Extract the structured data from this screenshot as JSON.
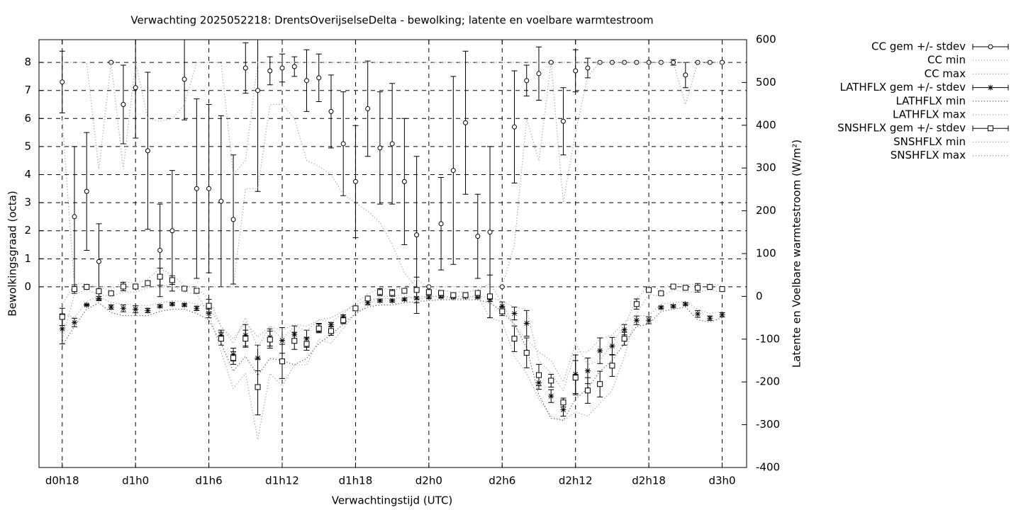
{
  "chart_data": {
    "type": "errorbar",
    "title": "Verwachting 2025052218: DrentsOverijselseDelta - bewolking; latente en voelbare warmtestroom",
    "xlabel": "Verwachtingstijd (UTC)",
    "ylabel": "Bewolkingsgraad (octa)",
    "y2label": "Latente en Voelbare warmtestroom (W/m²)",
    "x": [
      18,
      19,
      20,
      21,
      22,
      23,
      24,
      25,
      26,
      27,
      28,
      29,
      30,
      31,
      32,
      33,
      34,
      35,
      36,
      37,
      38,
      39,
      40,
      41,
      42,
      43,
      44,
      45,
      46,
      47,
      48,
      49,
      50,
      51,
      52,
      53,
      54,
      55,
      56,
      57,
      58,
      59,
      60,
      61,
      62,
      63,
      64,
      65,
      66,
      67,
      68,
      69,
      70,
      71,
      72
    ],
    "xlim": [
      16.1,
      74
    ],
    "xticks": [
      {
        "value": 18,
        "label": "d0h18"
      },
      {
        "value": 24,
        "label": "d1h0"
      },
      {
        "value": 30,
        "label": "d1h6"
      },
      {
        "value": 36,
        "label": "d1h12"
      },
      {
        "value": 42,
        "label": "d1h18"
      },
      {
        "value": 48,
        "label": "d2h0"
      },
      {
        "value": 54,
        "label": "d2h6"
      },
      {
        "value": 60,
        "label": "d2h12"
      },
      {
        "value": 66,
        "label": "d2h18"
      },
      {
        "value": 72,
        "label": "d3h0"
      }
    ],
    "ylim": [
      -6.44,
      8.81
    ],
    "yticks": [
      0,
      1,
      2,
      3,
      4,
      5,
      6,
      7,
      8
    ],
    "y2lim": [
      -400,
      600
    ],
    "y2ticks": [
      -400,
      -300,
      -200,
      -100,
      0,
      100,
      200,
      300,
      400,
      500,
      600
    ],
    "grid": true,
    "legend": "outside-right",
    "series": [
      {
        "name": "CC gem +/- stdev",
        "style": "errorbar",
        "marker": "circle",
        "color": "#000000",
        "values": [
          7.3,
          2.5,
          3.4,
          0.9,
          8,
          6.5,
          7.1,
          4.85,
          1.3,
          2.0,
          7.4,
          3.5,
          3.5,
          3.05,
          2.4,
          7.8,
          7.0,
          7.7,
          7.8,
          7.85,
          7.35,
          7.45,
          6.25,
          5.1,
          3.75,
          6.35,
          4.95,
          5.1,
          3.75,
          1.85,
          0,
          2.25,
          4.15,
          5.85,
          1.8,
          1.95,
          0,
          5.7,
          7.35,
          7.6,
          8,
          5.9,
          7.7,
          7.8,
          8,
          8,
          8,
          8,
          8,
          8,
          8,
          7.55,
          8,
          8,
          8
        ],
        "errors": [
          1.1,
          2.5,
          2.1,
          1.35,
          0,
          1.4,
          1.8,
          2.8,
          1.65,
          2.15,
          1.45,
          3.2,
          3.0,
          3.05,
          2.3,
          0.9,
          3.6,
          0.5,
          0.5,
          0.35,
          1.1,
          0.85,
          1.3,
          1.85,
          2.0,
          1.7,
          2.0,
          2.15,
          2.25,
          2.8,
          0,
          1.65,
          3.35,
          2.55,
          1.5,
          3.05,
          0,
          2.0,
          0.55,
          0.95,
          0,
          1.2,
          0.75,
          0.35,
          0,
          0,
          0,
          0,
          0,
          0,
          0.1,
          0.45,
          0,
          0,
          0
        ]
      },
      {
        "name": "CC min",
        "style": "dotted",
        "color": "#a0a0a0",
        "values": [
          6,
          0,
          0,
          0,
          0,
          0,
          0,
          0,
          0,
          0,
          0,
          0,
          0,
          0,
          0,
          3.5,
          3.5,
          6.5,
          6.5,
          6,
          4.5,
          4.3,
          4,
          3.3,
          3,
          2.7,
          2.3,
          1.5,
          0.5,
          0,
          0,
          0,
          0,
          0,
          0,
          0,
          0,
          1.5,
          6,
          4.5,
          8,
          3,
          5.5,
          7.5,
          8,
          8,
          8,
          8,
          8,
          8,
          8,
          6.5,
          8,
          8,
          8
        ]
      },
      {
        "name": "CC max",
        "style": "dotted",
        "color": "#a0a0a0",
        "values": [
          8,
          8,
          8,
          4.2,
          8,
          4.2,
          8,
          6,
          5.9,
          6,
          6.5,
          8,
          8,
          8,
          4,
          4.5,
          8,
          8,
          8,
          8,
          8,
          8,
          8,
          8,
          8,
          8,
          8,
          8,
          8,
          8,
          8,
          8,
          8,
          8,
          8,
          8,
          8,
          8,
          8,
          8,
          8,
          8,
          8,
          8,
          8,
          8,
          8,
          8,
          8,
          8,
          8,
          8,
          8,
          8,
          8
        ]
      },
      {
        "name": "LATHFLX gem +/- stdev",
        "style": "errorbar",
        "marker": "star",
        "color": "#000000",
        "axis": "y2",
        "values": [
          -76,
          -61,
          -20,
          -5,
          -25,
          -28,
          -30,
          -33,
          -23,
          -18,
          -20,
          -28,
          -40,
          -91,
          -136,
          -91,
          -144,
          -96,
          -103,
          -89,
          -99,
          -73,
          -66,
          -48,
          -28,
          -15,
          -10,
          -10,
          -7,
          -4,
          -2,
          -1,
          -2,
          -1,
          -2,
          -7,
          -23,
          -40,
          -63,
          -202,
          -233,
          -265,
          -182,
          -174,
          -127,
          -116,
          -78,
          -56,
          -56,
          -26,
          -23,
          -18,
          -41,
          -51,
          -43
        ],
        "errors": [
          35,
          10,
          2,
          5,
          5,
          8,
          8,
          5,
          3,
          3,
          3,
          5,
          10,
          12,
          15,
          25,
          30,
          20,
          30,
          20,
          20,
          10,
          5,
          5,
          5,
          5,
          3,
          3,
          3,
          3,
          3,
          2,
          2,
          2,
          2,
          5,
          10,
          15,
          30,
          15,
          15,
          15,
          45,
          30,
          30,
          20,
          12,
          10,
          8,
          3,
          3,
          3,
          8,
          5,
          5
        ]
      },
      {
        "name": "LATHFLX min",
        "style": "dotted",
        "color": "#505050",
        "axis": "y2",
        "values": [
          -115,
          -70,
          -30,
          -15,
          -38,
          -45,
          -45,
          -45,
          -35,
          -30,
          -30,
          -40,
          -55,
          -110,
          -175,
          -140,
          -185,
          -145,
          -150,
          -160,
          -145,
          -110,
          -90,
          -65,
          -40,
          -25,
          -20,
          -20,
          -15,
          -12,
          -10,
          -8,
          -8,
          -8,
          -8,
          -15,
          -35,
          -65,
          -120,
          -230,
          -285,
          -290,
          -240,
          -215,
          -175,
          -150,
          -110,
          -70,
          -65,
          -35,
          -30,
          -25,
          -55,
          -60,
          -50
        ]
      },
      {
        "name": "LATHFLX max",
        "style": "dotted",
        "color": "#a0a0a0",
        "axis": "y2",
        "values": [
          -40,
          -50,
          -12,
          0,
          -15,
          -18,
          -20,
          -22,
          -15,
          -10,
          -12,
          -18,
          -25,
          -70,
          -100,
          -60,
          -95,
          -70,
          -80,
          -65,
          -70,
          -55,
          -50,
          -35,
          -20,
          -8,
          -5,
          -5,
          -3,
          -1,
          0,
          0,
          0,
          0,
          0,
          -2,
          -12,
          -25,
          -30,
          -150,
          -180,
          -220,
          -130,
          -130,
          -100,
          -90,
          -60,
          -45,
          -45,
          -18,
          -15,
          -12,
          -30,
          -40,
          -35
        ]
      },
      {
        "name": "SNSHFLX gem +/- stdev",
        "style": "errorbar",
        "marker": "square",
        "color": "#000000",
        "axis": "y2",
        "values": [
          -48,
          17,
          22,
          12,
          7,
          23,
          23,
          31,
          46,
          38,
          18,
          13,
          -22,
          -99,
          -144,
          -99,
          -212,
          -101,
          -152,
          -104,
          -111,
          -75,
          -81,
          -56,
          -28,
          -5,
          10,
          8,
          13,
          15,
          10,
          8,
          3,
          3,
          8,
          0,
          -35,
          -99,
          -132,
          -184,
          -197,
          -248,
          -190,
          -220,
          -205,
          -162,
          -99,
          -18,
          15,
          7,
          23,
          20,
          20,
          22,
          17
        ],
        "errors": [
          20,
          10,
          3,
          5,
          3,
          10,
          5,
          5,
          20,
          10,
          5,
          5,
          15,
          15,
          15,
          20,
          65,
          20,
          40,
          20,
          15,
          10,
          10,
          8,
          5,
          5,
          8,
          8,
          5,
          30,
          5,
          3,
          3,
          3,
          5,
          50,
          10,
          30,
          35,
          25,
          15,
          10,
          40,
          30,
          30,
          25,
          15,
          12,
          3,
          3,
          3,
          3,
          10,
          3,
          3
        ]
      },
      {
        "name": "SNSHFLX min",
        "style": "dotted",
        "color": "#a0a0a0",
        "axis": "y2",
        "values": [
          -100,
          5,
          15,
          5,
          0,
          10,
          10,
          20,
          25,
          25,
          10,
          5,
          -40,
          -130,
          -215,
          -180,
          -335,
          -180,
          -210,
          -160,
          -160,
          -100,
          -110,
          -75,
          -40,
          -20,
          0,
          0,
          5,
          -10,
          0,
          0,
          -5,
          -5,
          0,
          -50,
          -60,
          -140,
          -180,
          -240,
          -280,
          -290,
          -270,
          -280,
          -250,
          -220,
          -140,
          -40,
          5,
          0,
          15,
          10,
          10,
          15,
          10
        ]
      },
      {
        "name": "SNSHFLX max",
        "style": "dotted",
        "color": "#a0a0a0",
        "axis": "y2",
        "values": [
          -20,
          30,
          30,
          20,
          15,
          35,
          30,
          40,
          65,
          50,
          25,
          20,
          -5,
          -70,
          -110,
          -50,
          -120,
          -70,
          -100,
          -70,
          -80,
          -55,
          -60,
          -40,
          -15,
          5,
          20,
          15,
          20,
          40,
          20,
          15,
          10,
          10,
          15,
          30,
          -15,
          -70,
          -100,
          -130,
          -150,
          -200,
          -110,
          -160,
          -150,
          -110,
          -70,
          -5,
          25,
          15,
          30,
          28,
          28,
          30,
          25
        ]
      }
    ]
  }
}
